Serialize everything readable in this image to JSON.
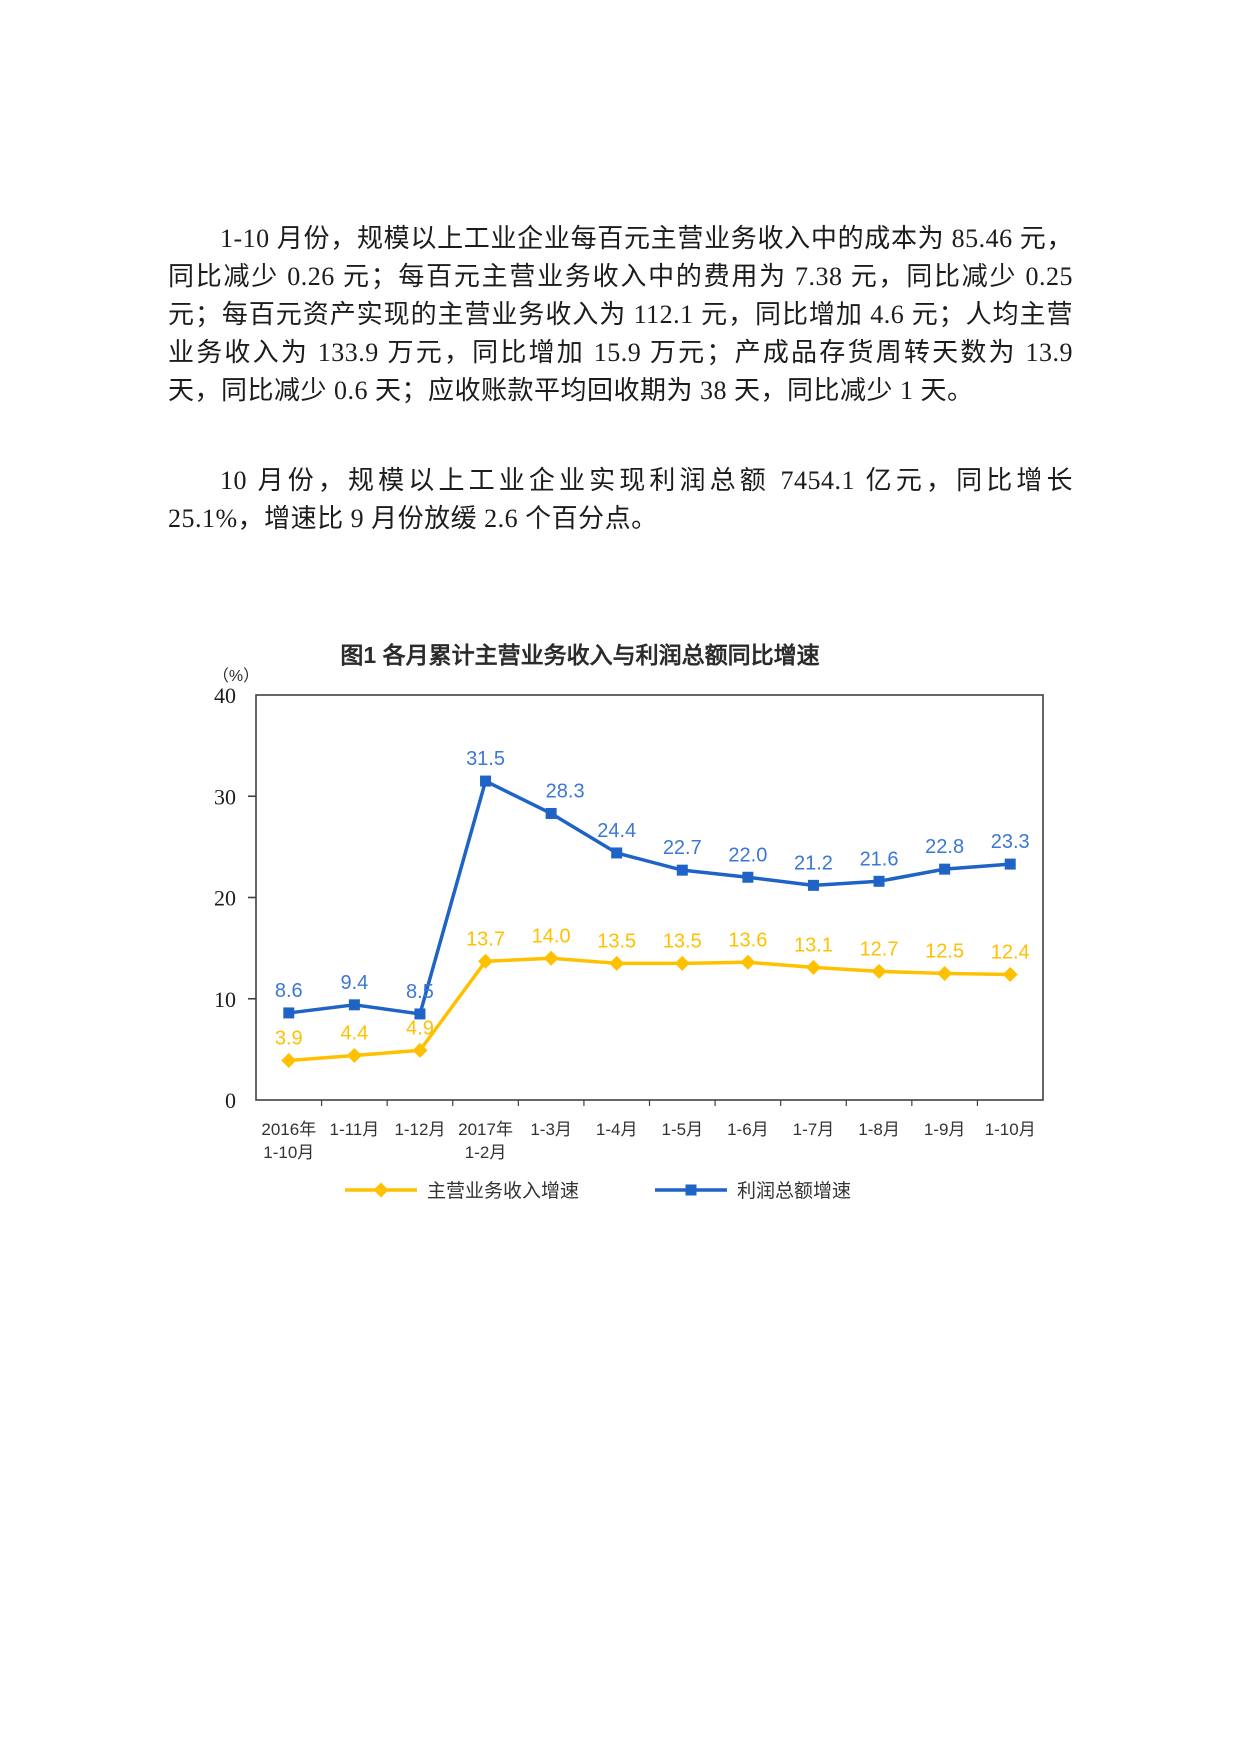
{
  "document": {
    "paragraph1": "1-10 月份，规模以上工业企业每百元主营业务收入中的成本为 85.46 元，同比减少 0.26 元；每百元主营业务收入中的费用为 7.38 元，同比减少 0.25 元；每百元资产实现的主营业务收入为 112.1 元，同比增加 4.6 元；人均主营业务收入为 133.9 万元，同比增加 15.9 万元；产成品存货周转天数为 13.9 天，同比减少 0.6 天；应收账款平均回收期为 38 天，同比减少 1 天。",
    "paragraph2": "10 月份，规模以上工业企业实现利润总额 7454.1 亿元，同比增长 25.1%，增速比 9 月份放缓 2.6 个百分点。"
  },
  "chart_data": {
    "type": "line",
    "title": "图1  各月累计主营业务收入与利润总额同比增速",
    "unit_label": "（%）",
    "categories": [
      "2016年\n1-10月",
      "1-11月",
      "1-12月",
      "2017年\n1-2月",
      "1-3月",
      "1-4月",
      "1-5月",
      "1-6月",
      "1-7月",
      "1-8月",
      "1-9月",
      "1-10月"
    ],
    "series": [
      {
        "name": "主营业务收入增速",
        "color": "#FFC000",
        "label_color": "#FFC000",
        "marker": "diamond",
        "values": [
          3.9,
          4.4,
          4.9,
          13.7,
          14.0,
          13.5,
          13.5,
          13.6,
          13.1,
          12.7,
          12.5,
          12.4
        ],
        "labels": [
          "3.9",
          "4.4",
          "4.9",
          "13.7",
          "14.0",
          "13.5",
          "13.5",
          "13.6",
          "13.1",
          "12.7",
          "12.5",
          "12.4"
        ]
      },
      {
        "name": "利润总额增速",
        "color": "#1F63C6",
        "label_color": "#3B77D5",
        "marker": "square",
        "values": [
          8.6,
          9.4,
          8.5,
          31.5,
          28.3,
          24.4,
          22.7,
          22.0,
          21.2,
          21.6,
          22.8,
          23.3
        ],
        "labels": [
          "8.6",
          "9.4",
          "8.5",
          "31.5",
          "28.3",
          "24.4",
          "22.7",
          "22.0",
          "21.2",
          "21.6",
          "22.8",
          "23.3"
        ]
      }
    ],
    "y_axis": {
      "min": 0,
      "max": 40,
      "ticks": [
        "40",
        "30",
        "20",
        "10",
        "0"
      ]
    },
    "legend_position": "bottom",
    "grid": false,
    "axis_color": "#404040",
    "text_color": "#333333"
  }
}
